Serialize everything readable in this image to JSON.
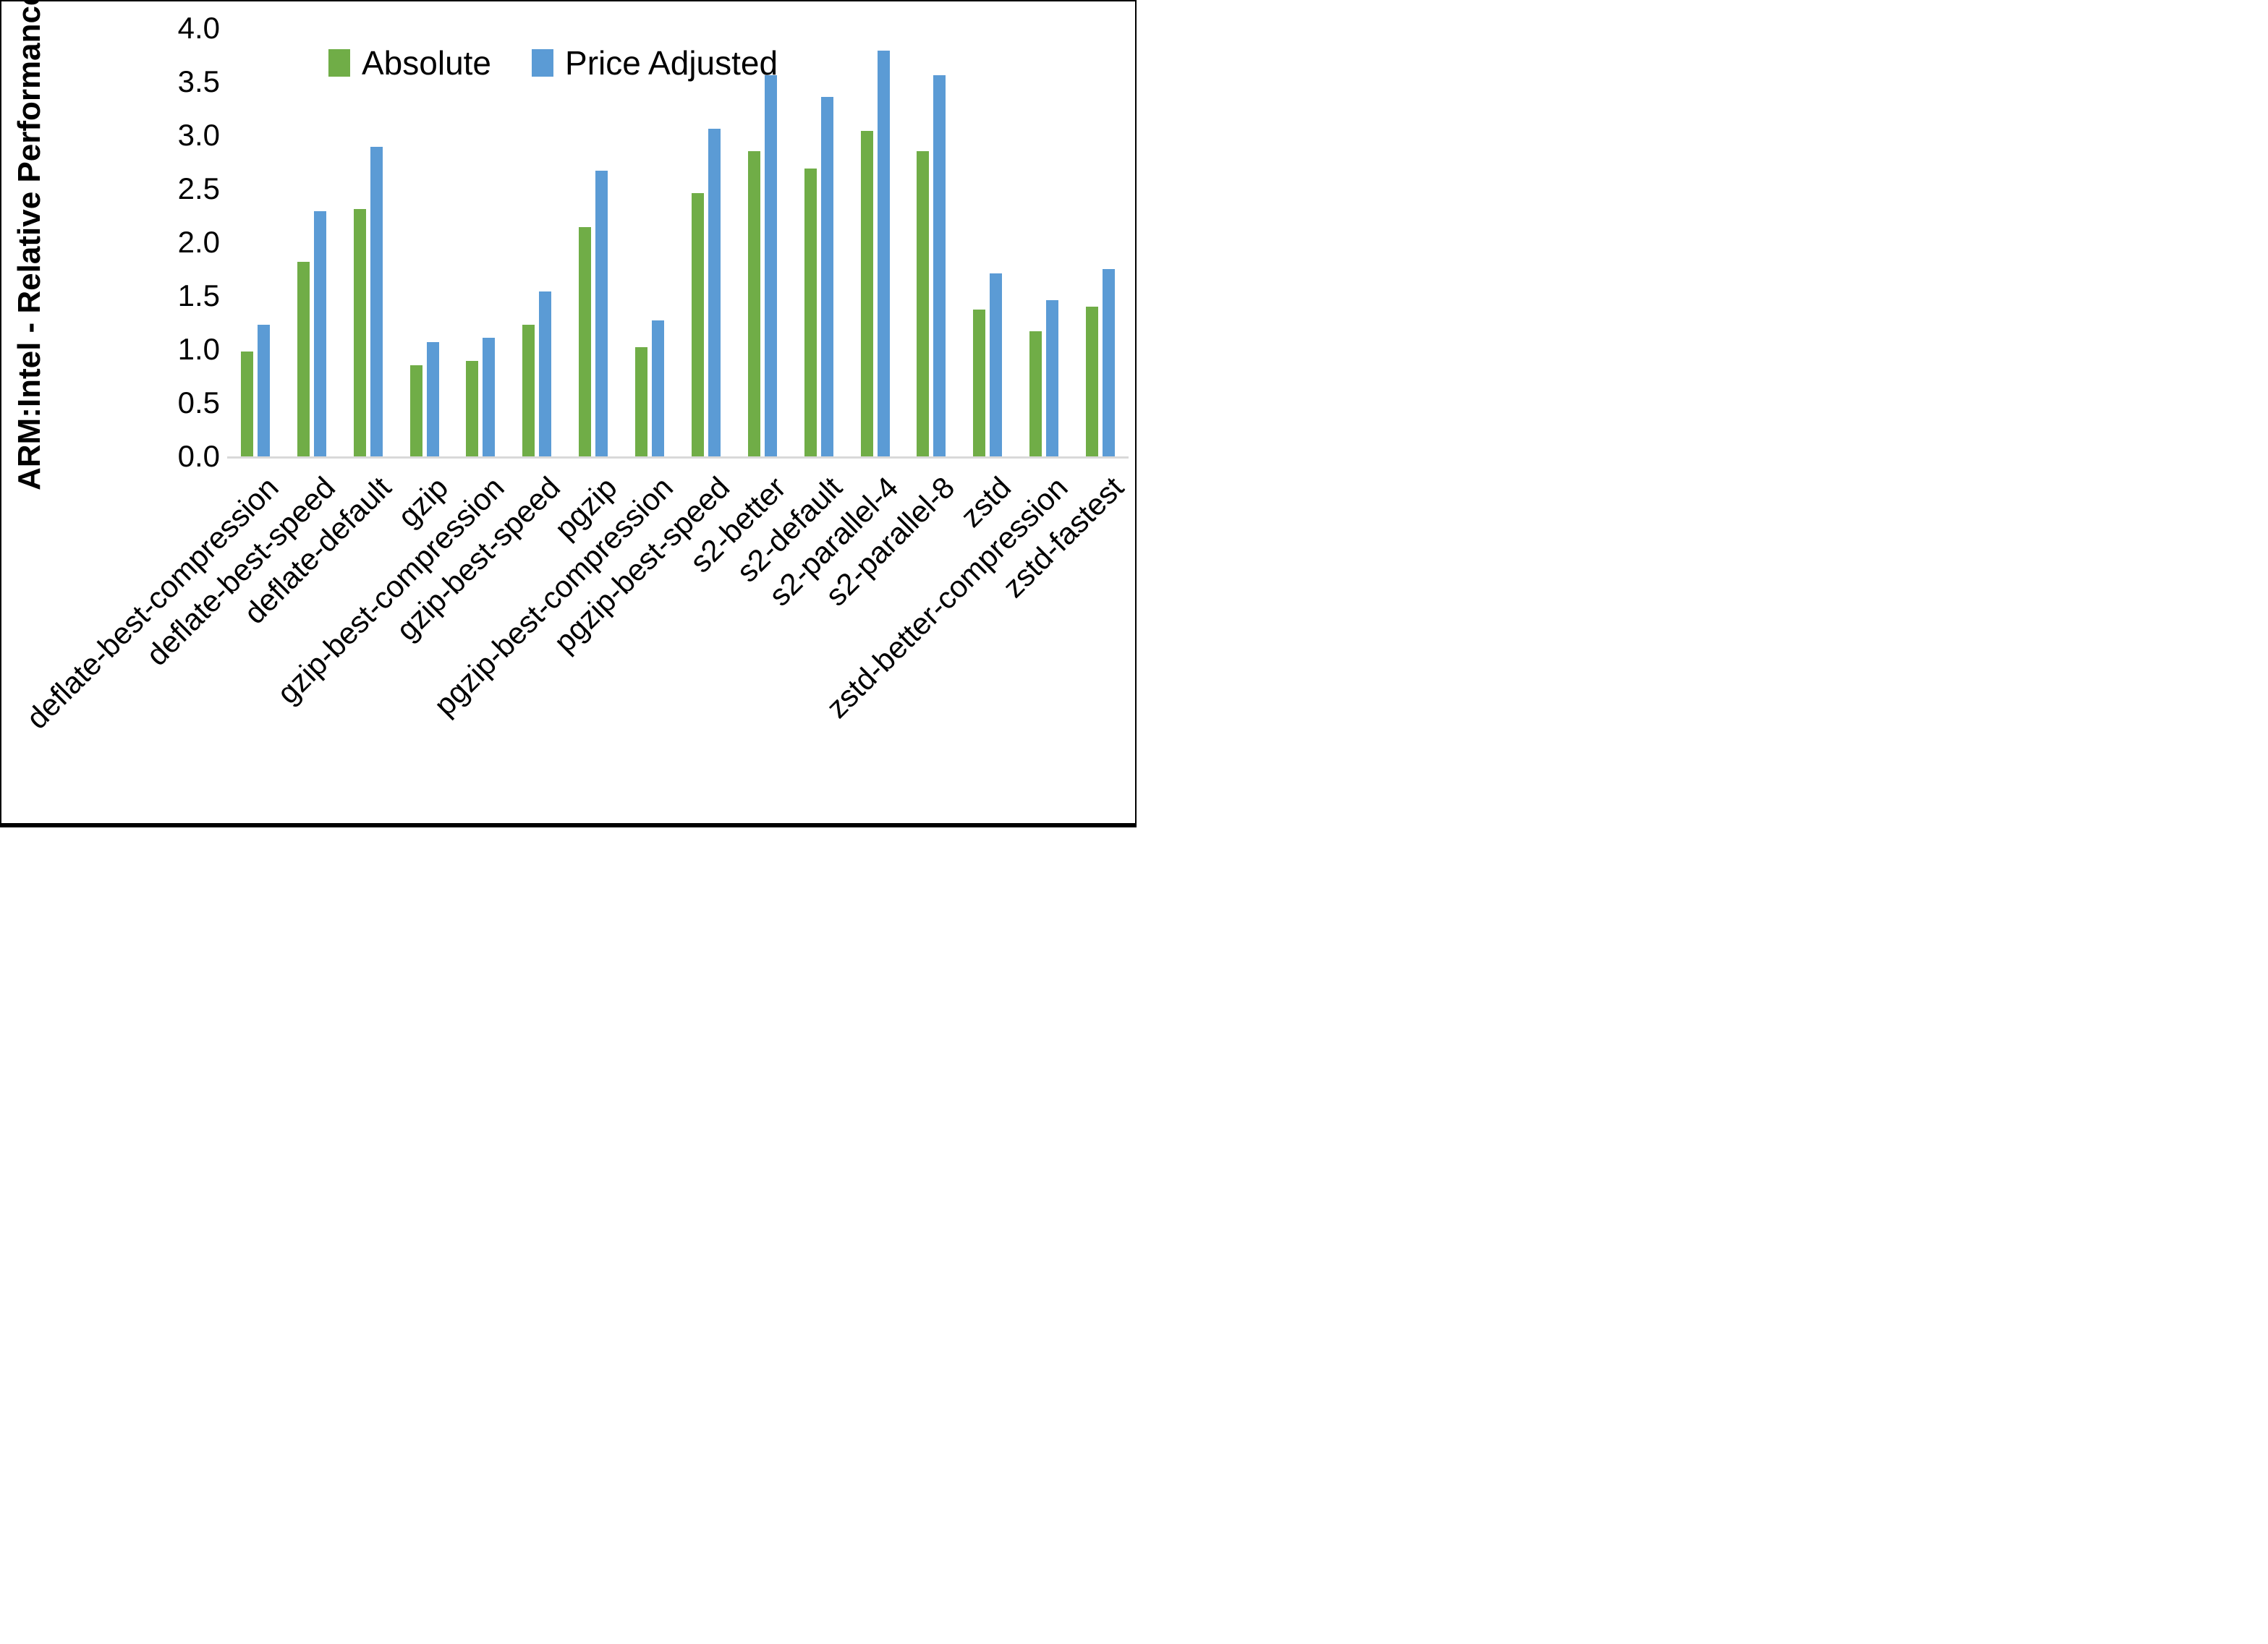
{
  "chart_data": {
    "type": "bar",
    "title": "",
    "xlabel": "",
    "ylabel": "ARM:Intel - Relative Performance",
    "ylim": [
      0.0,
      4.0
    ],
    "ytick_step": 0.5,
    "yticks": [
      "0.0",
      "0.5",
      "1.0",
      "1.5",
      "2.0",
      "2.5",
      "3.0",
      "3.5",
      "4.0"
    ],
    "grid": false,
    "legend_position": "top-center",
    "categories": [
      "deflate-best-compression",
      "deflate-best-speed",
      "deflate-default",
      "gzip",
      "gzip-best-compression",
      "gzip-best-speed",
      "pgzip",
      "pgzip-best-compression",
      "pgzip-best-speed",
      "s2-better",
      "s2-default",
      "s2-parallel-4",
      "s2-parallel-8",
      "zstd",
      "zstd-better-compression",
      "zstd-fastest"
    ],
    "series": [
      {
        "name": "Absolute",
        "color": "#70AD47",
        "values": [
          0.98,
          1.82,
          2.31,
          0.85,
          0.89,
          1.23,
          2.14,
          1.02,
          2.46,
          2.85,
          2.69,
          3.04,
          2.85,
          1.37,
          1.17,
          1.4
        ]
      },
      {
        "name": "Price Adjusted",
        "color": "#5B9BD5",
        "values": [
          1.23,
          2.29,
          2.89,
          1.07,
          1.11,
          1.54,
          2.67,
          1.27,
          3.06,
          3.56,
          3.36,
          3.79,
          3.56,
          1.71,
          1.46,
          1.75
        ]
      }
    ],
    "colors": {
      "axis_line": "#d9d9d9",
      "text": "#000000",
      "background": "#ffffff",
      "border": "#000000"
    }
  }
}
